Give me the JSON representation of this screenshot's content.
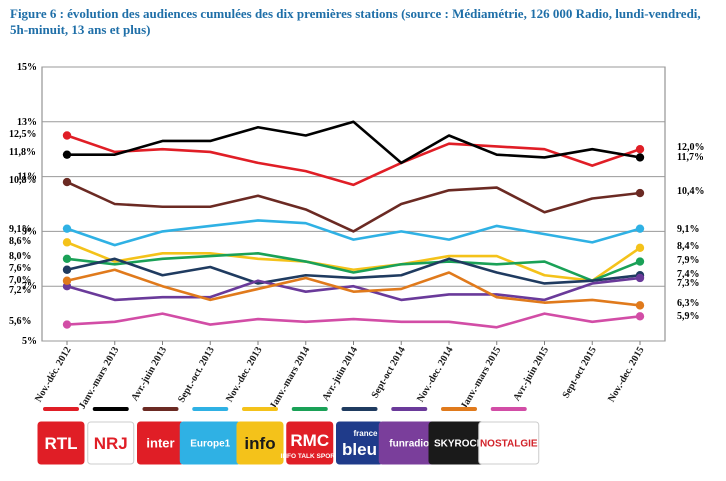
{
  "title": "Figure 6 : évolution des audiences cumulées des dix premières stations (source : Médiamétrie, 126 000 Radio, lundi-vendredi, 5h-minuit, 13 ans et plus)",
  "chart_data": {
    "type": "line",
    "title": "Figure 6 : évolution des audiences cumulées des dix premières stations (source : Médiamétrie, 126 000 Radio, lundi-vendredi, 5h-minuit, 13 ans et plus)",
    "categories": [
      "Nov.-déc. 2012",
      "Janv.-mars 2013",
      "Avr.-juin 2013",
      "Sept.-oct. 2013",
      "Nov.-dec. 2013",
      "Janv.-mars 2014",
      "Avr.-juin 2014",
      "Sept-oct 2014",
      "Nov.-dec. 2014",
      "Janv.-mars 2015",
      "Avr.-juin 2015",
      "Sept-oct 2015",
      "Nov.-dec. 2015"
    ],
    "yticks": [
      "5%",
      "7%",
      "9%",
      "11%",
      "13%",
      "15%"
    ],
    "ylim": [
      5,
      15
    ],
    "grid": true,
    "legend": "bottom",
    "series": [
      {
        "name": "RTL",
        "color": "#e01e26",
        "values": [
          12.5,
          11.9,
          12.0,
          11.9,
          11.5,
          11.2,
          10.7,
          11.5,
          12.2,
          12.1,
          12.0,
          11.4,
          12.0
        ],
        "start_label": "12,5%",
        "end_label": "12,0%"
      },
      {
        "name": "NRJ",
        "color": "#000000",
        "values": [
          11.8,
          11.8,
          12.3,
          12.3,
          12.8,
          12.5,
          13.0,
          11.5,
          12.5,
          11.8,
          11.7,
          12.0,
          11.7
        ],
        "start_label": "11,8%",
        "end_label": "11,7%"
      },
      {
        "name": "France Inter",
        "color": "#6b2a23",
        "values": [
          10.8,
          10.0,
          9.9,
          9.9,
          10.3,
          9.8,
          9.0,
          10.0,
          10.5,
          10.6,
          9.7,
          10.2,
          10.4
        ],
        "start_label": "10,8%",
        "end_label": "10,4%"
      },
      {
        "name": "Europe 1",
        "color": "#2fb1e4",
        "values": [
          9.1,
          8.5,
          9.0,
          9.2,
          9.4,
          9.3,
          8.7,
          9.0,
          8.7,
          9.2,
          8.9,
          8.6,
          9.1
        ],
        "start_label": "9,1%",
        "end_label": "9,1%"
      },
      {
        "name": "France Info",
        "color": "#f4c21a",
        "values": [
          8.6,
          7.9,
          8.2,
          8.2,
          8.0,
          7.9,
          7.6,
          7.8,
          8.1,
          8.1,
          7.4,
          7.2,
          8.4
        ],
        "start_label": "8,6%",
        "end_label": "8,4%"
      },
      {
        "name": "RMC",
        "color": "#1aa157",
        "values": [
          8.0,
          7.8,
          8.0,
          8.1,
          8.2,
          7.9,
          7.5,
          7.8,
          7.9,
          7.8,
          7.9,
          7.2,
          7.9
        ],
        "start_label": "8,0%",
        "end_label": "7,9%"
      },
      {
        "name": "France Bleu",
        "color": "#1f3b60",
        "values": [
          7.6,
          8.0,
          7.4,
          7.7,
          7.1,
          7.4,
          7.3,
          7.4,
          8.0,
          7.5,
          7.1,
          7.2,
          7.4
        ],
        "start_label": "7,6%",
        "end_label": "7,4%"
      },
      {
        "name": "Fun Radio",
        "color": "#6a3a9a",
        "values": [
          7.0,
          6.5,
          6.6,
          6.6,
          7.2,
          6.8,
          7.0,
          6.5,
          6.7,
          6.7,
          6.5,
          7.1,
          7.3
        ],
        "start_label": "7,0%",
        "end_label": "7,3%"
      },
      {
        "name": "Skyrock",
        "color": "#e07a1c",
        "values": [
          7.2,
          7.6,
          7.0,
          6.5,
          6.9,
          7.3,
          6.8,
          6.9,
          7.5,
          6.6,
          6.4,
          6.5,
          6.3
        ],
        "start_label": "7,2%",
        "end_label": "6,3%"
      },
      {
        "name": "Nostalgie",
        "color": "#d24da6",
        "values": [
          5.6,
          5.7,
          6.0,
          5.6,
          5.8,
          5.7,
          5.8,
          5.7,
          5.7,
          5.5,
          6.0,
          5.7,
          5.9
        ],
        "start_label": "5,6%",
        "end_label": "5,9%"
      }
    ]
  },
  "logos": [
    {
      "name": "rtl",
      "text": "RTL",
      "bg": "#e01e26",
      "fg": "#ffffff"
    },
    {
      "name": "nrj",
      "text": "NRJ",
      "bg": "#ffffff",
      "fg": "#e01e26"
    },
    {
      "name": "inter",
      "text": "inter",
      "bg": "#e01e26",
      "fg": "#ffffff"
    },
    {
      "name": "europe1",
      "text": "Europe1",
      "bg": "#2fb1e4",
      "fg": "#ffffff"
    },
    {
      "name": "info",
      "text": "info",
      "bg": "#f4c21a",
      "fg": "#1a1a1a"
    },
    {
      "name": "rmc",
      "text": "RMC",
      "sub": "INFO TALK SPORT",
      "bg": "#e01e26",
      "fg": "#ffffff"
    },
    {
      "name": "bleu",
      "text": "bleu",
      "sub": "france",
      "bg": "#1f3b8a",
      "fg": "#ffffff"
    },
    {
      "name": "funradio",
      "text": "funradio",
      "bg": "#7a3e9b",
      "fg": "#ffffff"
    },
    {
      "name": "skyrock",
      "text": "SKYROCK",
      "bg": "#1a1a1a",
      "fg": "#ffffff"
    },
    {
      "name": "nostalgie",
      "text": "NOSTALGIE",
      "bg": "#ffffff",
      "fg": "#d2232a"
    }
  ]
}
